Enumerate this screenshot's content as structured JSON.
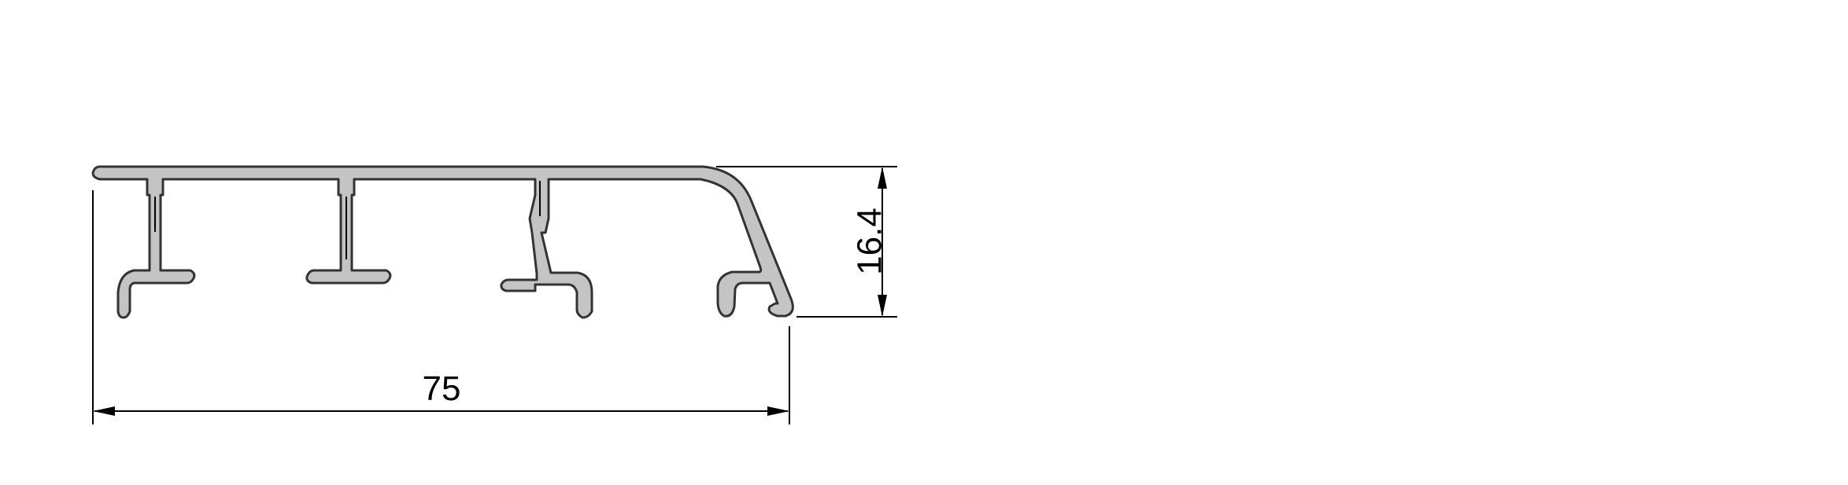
{
  "drawing": {
    "dimensions": {
      "width_label": "75",
      "height_label": "16.4"
    },
    "colors": {
      "profile_fill": "#c4c4c4",
      "profile_stroke": "#333333",
      "line": "#000000",
      "background": "#ffffff"
    }
  }
}
